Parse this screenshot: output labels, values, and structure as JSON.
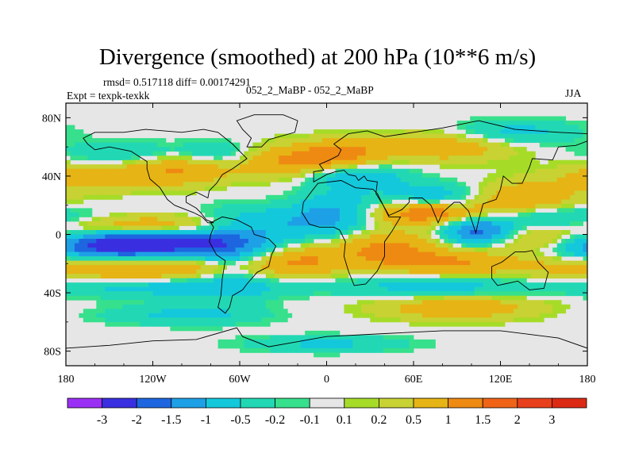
{
  "chart_data": {
    "type": "heatmap",
    "title": "Divergence (smoothed) at 200 hPa (10**6 m/s)",
    "subtitle_left_top": "rmsd= 0.517118 diff= 0.00174291",
    "subtitle_left": "Expt = texpk-texkk",
    "subtitle_center": "052_2_MaBP - 052_2_MaBP",
    "subtitle_right": "JJA",
    "x_ticks": [
      {
        "value": -180,
        "label": "180"
      },
      {
        "value": -120,
        "label": "120W"
      },
      {
        "value": -60,
        "label": "60W"
      },
      {
        "value": 0,
        "label": "0"
      },
      {
        "value": 60,
        "label": "60E"
      },
      {
        "value": 120,
        "label": "120E"
      },
      {
        "value": 180,
        "label": "180"
      }
    ],
    "y_ticks": [
      {
        "value": 80,
        "label": "80N"
      },
      {
        "value": 40,
        "label": "40N"
      },
      {
        "value": 0,
        "label": "0"
      },
      {
        "value": -40,
        "label": "40S"
      },
      {
        "value": -80,
        "label": "80S"
      }
    ],
    "xlim": [
      -180,
      180
    ],
    "ylim": [
      -90,
      90
    ],
    "colorbar": {
      "levels": [
        "-3",
        "-2",
        "-1.5",
        "-1",
        "-0.5",
        "-0.2",
        "-0.1",
        "0.1",
        "0.2",
        "0.5",
        "1",
        "1.5",
        "2",
        "3"
      ],
      "colors": [
        "#9b30f5",
        "#3a2fe0",
        "#1d66e0",
        "#1ea0e6",
        "#14c8dc",
        "#22d8b4",
        "#36e08c",
        "#e6e6e6",
        "#a6dc28",
        "#c8d232",
        "#e6b414",
        "#ee8a12",
        "#f06418",
        "#e8401c",
        "#dc2a14"
      ]
    },
    "features": [
      {
        "name": "tropical-pacific-south-negative",
        "lon": -145,
        "lat": -8,
        "value": -2.2,
        "sx": 45,
        "sy": 7
      },
      {
        "name": "tropical-pacific-band-negative",
        "lon": -110,
        "lat": -6,
        "value": -1.0,
        "sx": 70,
        "sy": 8
      },
      {
        "name": "pacific-equatorial-positive-north",
        "lon": -130,
        "lat": 6,
        "value": 1.1,
        "sx": 55,
        "sy": 5
      },
      {
        "name": "pacific-south-positive-band",
        "lon": -120,
        "lat": -22,
        "value": 1.3,
        "sx": 70,
        "sy": 7
      },
      {
        "name": "pacific-south-negative-band",
        "lon": -110,
        "lat": -36,
        "value": -0.8,
        "sx": 60,
        "sy": 5
      },
      {
        "name": "south-america-negative",
        "lon": -65,
        "lat": -15,
        "value": -0.9,
        "sx": 20,
        "sy": 18
      },
      {
        "name": "atlantic-south-positive",
        "lon": -20,
        "lat": -15,
        "value": 0.9,
        "sx": 25,
        "sy": 8
      },
      {
        "name": "atlantic-north-negative",
        "lon": -30,
        "lat": 8,
        "value": -0.8,
        "sx": 30,
        "sy": 7
      },
      {
        "name": "africa-tropical-negative",
        "lon": 5,
        "lat": 15,
        "value": -1.0,
        "sx": 20,
        "sy": 10
      },
      {
        "name": "africa-east-positive",
        "lon": 40,
        "lat": -8,
        "value": 1.1,
        "sx": 25,
        "sy": 8
      },
      {
        "name": "arabia-positive",
        "lon": 70,
        "lat": 15,
        "value": 1.6,
        "sx": 30,
        "sy": 6
      },
      {
        "name": "india-negative",
        "lon": 80,
        "lat": 25,
        "value": -1.1,
        "sx": 30,
        "sy": 7
      },
      {
        "name": "maritime-continent-negative",
        "lon": 105,
        "lat": 2,
        "value": -2.0,
        "sx": 18,
        "sy": 7
      },
      {
        "name": "west-pacific-positive",
        "lon": 150,
        "lat": -4,
        "value": 1.4,
        "sx": 35,
        "sy": 7
      },
      {
        "name": "west-pacific-negative",
        "lon": 160,
        "lat": 10,
        "value": -1.0,
        "sx": 30,
        "sy": 6
      },
      {
        "name": "asia-east-positive",
        "lon": 130,
        "lat": 25,
        "value": 1.1,
        "sx": 30,
        "sy": 8
      },
      {
        "name": "indian-ocean-south-positive",
        "lon": 80,
        "lat": -20,
        "value": 1.0,
        "sx": 35,
        "sy": 7
      },
      {
        "name": "indian-ocean-south-negative",
        "lon": 75,
        "lat": -35,
        "value": -0.8,
        "sx": 45,
        "sy": 6
      },
      {
        "name": "southern-ocean-positive",
        "lon": 90,
        "lat": -50,
        "value": 0.9,
        "sx": 40,
        "sy": 6
      },
      {
        "name": "north-america-positive",
        "lon": -100,
        "lat": 45,
        "value": 1.0,
        "sx": 25,
        "sy": 8
      },
      {
        "name": "north-america-negative",
        "lon": -75,
        "lat": 55,
        "value": -0.7,
        "sx": 20,
        "sy": 6
      },
      {
        "name": "north-atlantic-positive",
        "lon": -30,
        "lat": 50,
        "value": 1.0,
        "sx": 25,
        "sy": 8
      },
      {
        "name": "europe-positive",
        "lon": 10,
        "lat": 55,
        "value": 1.1,
        "sx": 20,
        "sy": 7
      },
      {
        "name": "europe-negative",
        "lon": 20,
        "lat": 40,
        "value": -0.9,
        "sx": 25,
        "sy": 6
      },
      {
        "name": "siberia-positive",
        "lon": 80,
        "lat": 60,
        "value": 0.9,
        "sx": 35,
        "sy": 7
      },
      {
        "name": "arctic-negative",
        "lon": 130,
        "lat": 70,
        "value": -0.7,
        "sx": 30,
        "sy": 6
      },
      {
        "name": "north-pacific-positive",
        "lon": -160,
        "lat": 40,
        "value": 0.8,
        "sx": 30,
        "sy": 7
      },
      {
        "name": "north-pacific-negative",
        "lon": -140,
        "lat": 55,
        "value": -0.6,
        "sx": 30,
        "sy": 6
      },
      {
        "name": "antarctic-negative",
        "lon": 0,
        "lat": -75,
        "value": -0.6,
        "sx": 40,
        "sy": 4
      },
      {
        "name": "south-pacific-high-lat-negative",
        "lon": -100,
        "lat": -55,
        "value": -0.6,
        "sx": 40,
        "sy": 5
      }
    ],
    "continents": [
      {
        "name": "north-america",
        "points": [
          [
            -168,
            66
          ],
          [
            -160,
            70
          ],
          [
            -140,
            70
          ],
          [
            -125,
            72
          ],
          [
            -100,
            70
          ],
          [
            -85,
            72
          ],
          [
            -75,
            70
          ],
          [
            -65,
            62
          ],
          [
            -55,
            52
          ],
          [
            -65,
            45
          ],
          [
            -72,
            41
          ],
          [
            -76,
            35
          ],
          [
            -81,
            30
          ],
          [
            -82,
            25
          ],
          [
            -90,
            29
          ],
          [
            -97,
            26
          ],
          [
            -97,
            22
          ],
          [
            -90,
            18
          ],
          [
            -87,
            15
          ],
          [
            -83,
            10
          ],
          [
            -78,
            8
          ],
          [
            -82,
            8
          ],
          [
            -86,
            12
          ],
          [
            -92,
            15
          ],
          [
            -105,
            20
          ],
          [
            -110,
            24
          ],
          [
            -115,
            32
          ],
          [
            -122,
            38
          ],
          [
            -124,
            45
          ],
          [
            -124,
            50
          ],
          [
            -135,
            57
          ],
          [
            -150,
            60
          ],
          [
            -160,
            58
          ],
          [
            -165,
            62
          ]
        ]
      },
      {
        "name": "greenland",
        "points": [
          [
            -55,
            60
          ],
          [
            -45,
            60
          ],
          [
            -40,
            65
          ],
          [
            -22,
            70
          ],
          [
            -20,
            78
          ],
          [
            -30,
            82
          ],
          [
            -50,
            82
          ],
          [
            -62,
            78
          ],
          [
            -58,
            72
          ],
          [
            -52,
            66
          ]
        ]
      },
      {
        "name": "south-america",
        "points": [
          [
            -80,
            8
          ],
          [
            -72,
            12
          ],
          [
            -62,
            10
          ],
          [
            -52,
            5
          ],
          [
            -50,
            0
          ],
          [
            -40,
            -3
          ],
          [
            -35,
            -8
          ],
          [
            -38,
            -14
          ],
          [
            -40,
            -22
          ],
          [
            -48,
            -26
          ],
          [
            -55,
            -34
          ],
          [
            -58,
            -38
          ],
          [
            -65,
            -42
          ],
          [
            -67,
            -50
          ],
          [
            -70,
            -54
          ],
          [
            -75,
            -50
          ],
          [
            -73,
            -42
          ],
          [
            -72,
            -30
          ],
          [
            -70,
            -18
          ],
          [
            -76,
            -14
          ],
          [
            -81,
            -5
          ],
          [
            -80,
            0
          ],
          [
            -78,
            5
          ]
        ]
      },
      {
        "name": "africa",
        "points": [
          [
            -17,
            15
          ],
          [
            -16,
            22
          ],
          [
            -10,
            30
          ],
          [
            -6,
            35
          ],
          [
            10,
            37
          ],
          [
            20,
            32
          ],
          [
            32,
            31
          ],
          [
            35,
            28
          ],
          [
            43,
            12
          ],
          [
            51,
            12
          ],
          [
            45,
            2
          ],
          [
            40,
            -5
          ],
          [
            40,
            -15
          ],
          [
            35,
            -25
          ],
          [
            27,
            -34
          ],
          [
            19,
            -35
          ],
          [
            15,
            -25
          ],
          [
            12,
            -15
          ],
          [
            13,
            -5
          ],
          [
            9,
            3
          ],
          [
            5,
            5
          ],
          [
            -5,
            5
          ],
          [
            -12,
            7
          ]
        ]
      },
      {
        "name": "eurasia",
        "points": [
          [
            -9,
            36
          ],
          [
            -9,
            43
          ],
          [
            -2,
            44
          ],
          [
            -5,
            48
          ],
          [
            2,
            51
          ],
          [
            8,
            54
          ],
          [
            10,
            58
          ],
          [
            5,
            62
          ],
          [
            15,
            69
          ],
          [
            28,
            71
          ],
          [
            40,
            67
          ],
          [
            60,
            70
          ],
          [
            80,
            73
          ],
          [
            105,
            78
          ],
          [
            130,
            72
          ],
          [
            160,
            70
          ],
          [
            180,
            69
          ],
          [
            180,
            64
          ],
          [
            172,
            61
          ],
          [
            160,
            60
          ],
          [
            156,
            51
          ],
          [
            142,
            52
          ],
          [
            140,
            46
          ],
          [
            135,
            35
          ],
          [
            128,
            35
          ],
          [
            122,
            40
          ],
          [
            120,
            31
          ],
          [
            117,
            24
          ],
          [
            108,
            21
          ],
          [
            105,
            10
          ],
          [
            103,
            1
          ],
          [
            100,
            10
          ],
          [
            98,
            16
          ],
          [
            92,
            22
          ],
          [
            88,
            22
          ],
          [
            80,
            15
          ],
          [
            77,
            8
          ],
          [
            72,
            20
          ],
          [
            66,
            25
          ],
          [
            57,
            25
          ],
          [
            57,
            22
          ],
          [
            52,
            17
          ],
          [
            43,
            13
          ],
          [
            39,
            20
          ],
          [
            34,
            28
          ],
          [
            35,
            36
          ],
          [
            28,
            37
          ],
          [
            26,
            40
          ],
          [
            22,
            37
          ],
          [
            20,
            40
          ],
          [
            15,
            41
          ],
          [
            12,
            44
          ],
          [
            6,
            43
          ],
          [
            0,
            41
          ]
        ]
      },
      {
        "name": "australia",
        "points": [
          [
            114,
            -22
          ],
          [
            121,
            -19
          ],
          [
            130,
            -12
          ],
          [
            137,
            -12
          ],
          [
            142,
            -11
          ],
          [
            146,
            -19
          ],
          [
            153,
            -26
          ],
          [
            150,
            -37
          ],
          [
            140,
            -38
          ],
          [
            132,
            -32
          ],
          [
            118,
            -35
          ],
          [
            114,
            -30
          ]
        ]
      },
      {
        "name": "antarctica",
        "points": [
          [
            -180,
            -78
          ],
          [
            -150,
            -76
          ],
          [
            -120,
            -73
          ],
          [
            -90,
            -72
          ],
          [
            -62,
            -64
          ],
          [
            -58,
            -70
          ],
          [
            -40,
            -77
          ],
          [
            0,
            -70
          ],
          [
            40,
            -68
          ],
          [
            80,
            -66
          ],
          [
            120,
            -66
          ],
          [
            160,
            -71
          ],
          [
            180,
            -78
          ],
          [
            180,
            -90
          ],
          [
            -180,
            -90
          ]
        ]
      }
    ]
  }
}
